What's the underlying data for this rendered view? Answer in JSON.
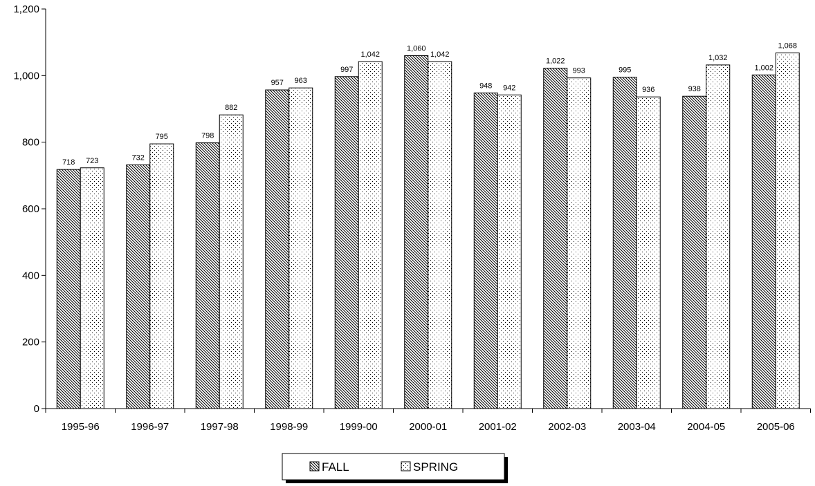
{
  "chart_data": {
    "type": "bar",
    "categories": [
      "1995-96",
      "1996-97",
      "1997-98",
      "1998-99",
      "1999-00",
      "2000-01",
      "2001-02",
      "2002-03",
      "2003-04",
      "2004-05",
      "2005-06"
    ],
    "series": [
      {
        "name": "FALL",
        "values": [
          718,
          732,
          798,
          957,
          997,
          1060,
          948,
          1022,
          995,
          938,
          1002
        ],
        "labels": [
          "718",
          "732",
          "798",
          "957",
          "997",
          "1,060",
          "948",
          "1,022",
          "995",
          "938",
          "1,002"
        ],
        "pattern": "diagonal-hatch"
      },
      {
        "name": "SPRING",
        "values": [
          723,
          795,
          882,
          963,
          1042,
          1042,
          942,
          993,
          936,
          1032,
          1068
        ],
        "labels": [
          "723",
          "795",
          "882",
          "963",
          "1,042",
          "1,042",
          "942",
          "993",
          "936",
          "1,032",
          "1,068"
        ],
        "pattern": "dots"
      }
    ],
    "ylim": [
      0,
      1200
    ],
    "yticks": [
      0,
      200,
      400,
      600,
      800,
      1000,
      1200
    ],
    "ytick_labels": [
      "0",
      "200",
      "400",
      "600",
      "800",
      "1,000",
      "1,200"
    ],
    "grid": false,
    "legend_position": "bottom-center"
  }
}
